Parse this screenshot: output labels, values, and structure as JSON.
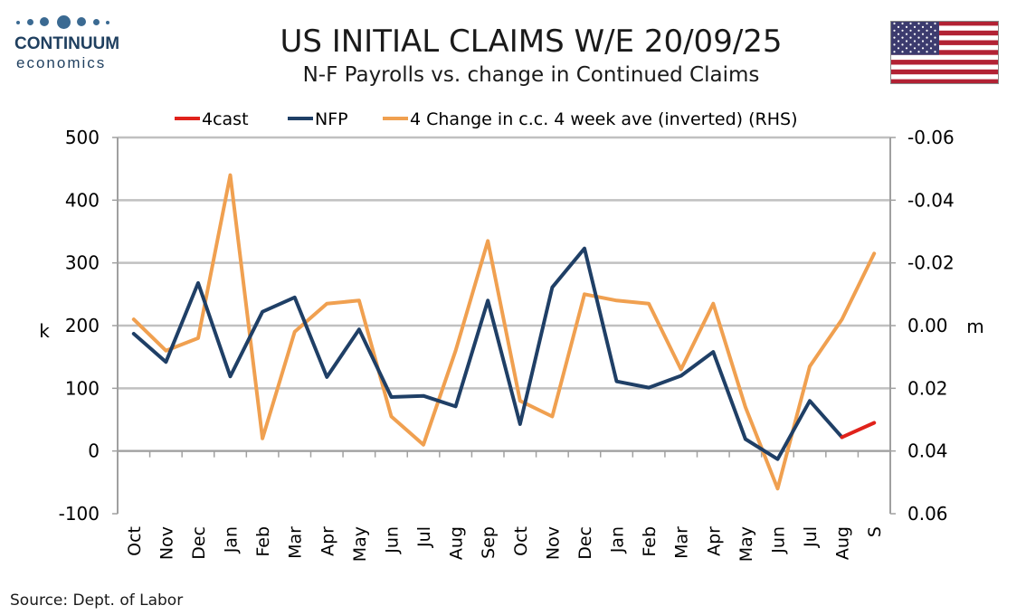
{
  "brand": {
    "name": "CONTINUUM",
    "sub": "economics"
  },
  "header": {
    "title": "US INITIAL CLAIMS W/E 20/09/25",
    "subtitle": "N-F Payrolls vs. change in Continued Claims"
  },
  "footer": {
    "source": "Source: Dept. of Labor"
  },
  "colors": {
    "nfp": "#1f3f66",
    "forecast": "#e0221b",
    "cc": "#f0a050",
    "grid": "#c0c0c0",
    "axis": "#a0a0a0"
  },
  "icons": {
    "flag": "us-flag-icon"
  },
  "chart_data": {
    "type": "line",
    "categories": [
      "Oct",
      "Nov",
      "Dec",
      "Jan",
      "Feb",
      "Mar",
      "Apr",
      "May",
      "Jun",
      "Jul",
      "Aug",
      "Sep",
      "Oct",
      "Nov",
      "Dec",
      "Jan",
      "Feb",
      "Mar",
      "Apr",
      "May",
      "Jun",
      "Jul",
      "Aug",
      "S"
    ],
    "series": [
      {
        "name": "4cast",
        "axis": "left",
        "values": [
          null,
          null,
          null,
          null,
          null,
          null,
          null,
          null,
          null,
          null,
          null,
          null,
          null,
          null,
          null,
          null,
          null,
          null,
          null,
          null,
          null,
          null,
          22,
          45
        ]
      },
      {
        "name": "NFP",
        "axis": "left",
        "values": [
          187,
          142,
          268,
          119,
          222,
          245,
          118,
          194,
          86,
          88,
          71,
          240,
          43,
          261,
          323,
          111,
          101,
          120,
          158,
          19,
          -13,
          80,
          22,
          null
        ]
      },
      {
        "name": "4 Change in c.c. 4 week ave (inverted) (RHS)",
        "axis": "right",
        "values": [
          -0.002,
          0.008,
          0.004,
          -0.048,
          0.036,
          0.002,
          -0.007,
          -0.008,
          0.029,
          0.038,
          0.008,
          -0.027,
          0.024,
          0.029,
          -0.01,
          -0.008,
          -0.007,
          0.014,
          -0.007,
          0.026,
          0.052,
          0.013,
          -0.002,
          -0.023
        ]
      }
    ],
    "ylabel": "k",
    "y2label": "m",
    "ylim": [
      -100,
      500
    ],
    "y2lim": [
      0.06,
      -0.06
    ],
    "yticks": [
      "500",
      "400",
      "300",
      "200",
      "100",
      "0",
      "-100"
    ],
    "y2ticks": [
      "-0.06",
      "-0.04",
      "-0.02",
      "0.00",
      "0.02",
      "0.04",
      "0.06"
    ],
    "legend_position": "top",
    "grid": true
  }
}
